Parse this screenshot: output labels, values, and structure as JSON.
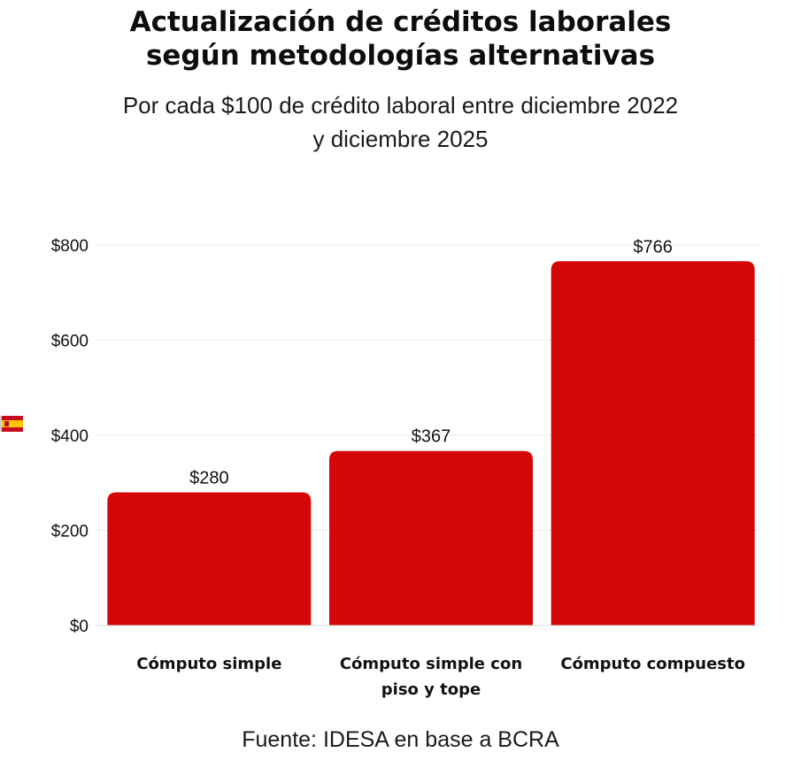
{
  "chart_data": {
    "type": "bar",
    "title_lines": [
      "Actualización de créditos laborales",
      "según metodologías alternativas"
    ],
    "subtitle_lines": [
      "Por cada $100 de crédito laboral entre diciembre 2022",
      "y diciembre 2025"
    ],
    "categories": [
      [
        "Cómputo simple"
      ],
      [
        "Cómputo simple con",
        "piso y tope"
      ],
      [
        "Cómputo compuesto"
      ]
    ],
    "values": [
      280,
      367,
      766
    ],
    "value_labels": [
      "$280",
      "$367",
      "$766"
    ],
    "y_ticks": [
      0,
      200,
      400,
      600,
      800
    ],
    "y_tick_labels": [
      "$0",
      "$200",
      "$400",
      "$600",
      "$800"
    ],
    "ylim": [
      0,
      800
    ],
    "xlabel": "",
    "ylabel": "",
    "grid": true,
    "legend": "none",
    "bar_color": "#d50606",
    "grid_color": "#e9e9e9"
  },
  "source": "Fuente: IDESA en base a BCRA",
  "flag_icon": "spain-flag-icon"
}
